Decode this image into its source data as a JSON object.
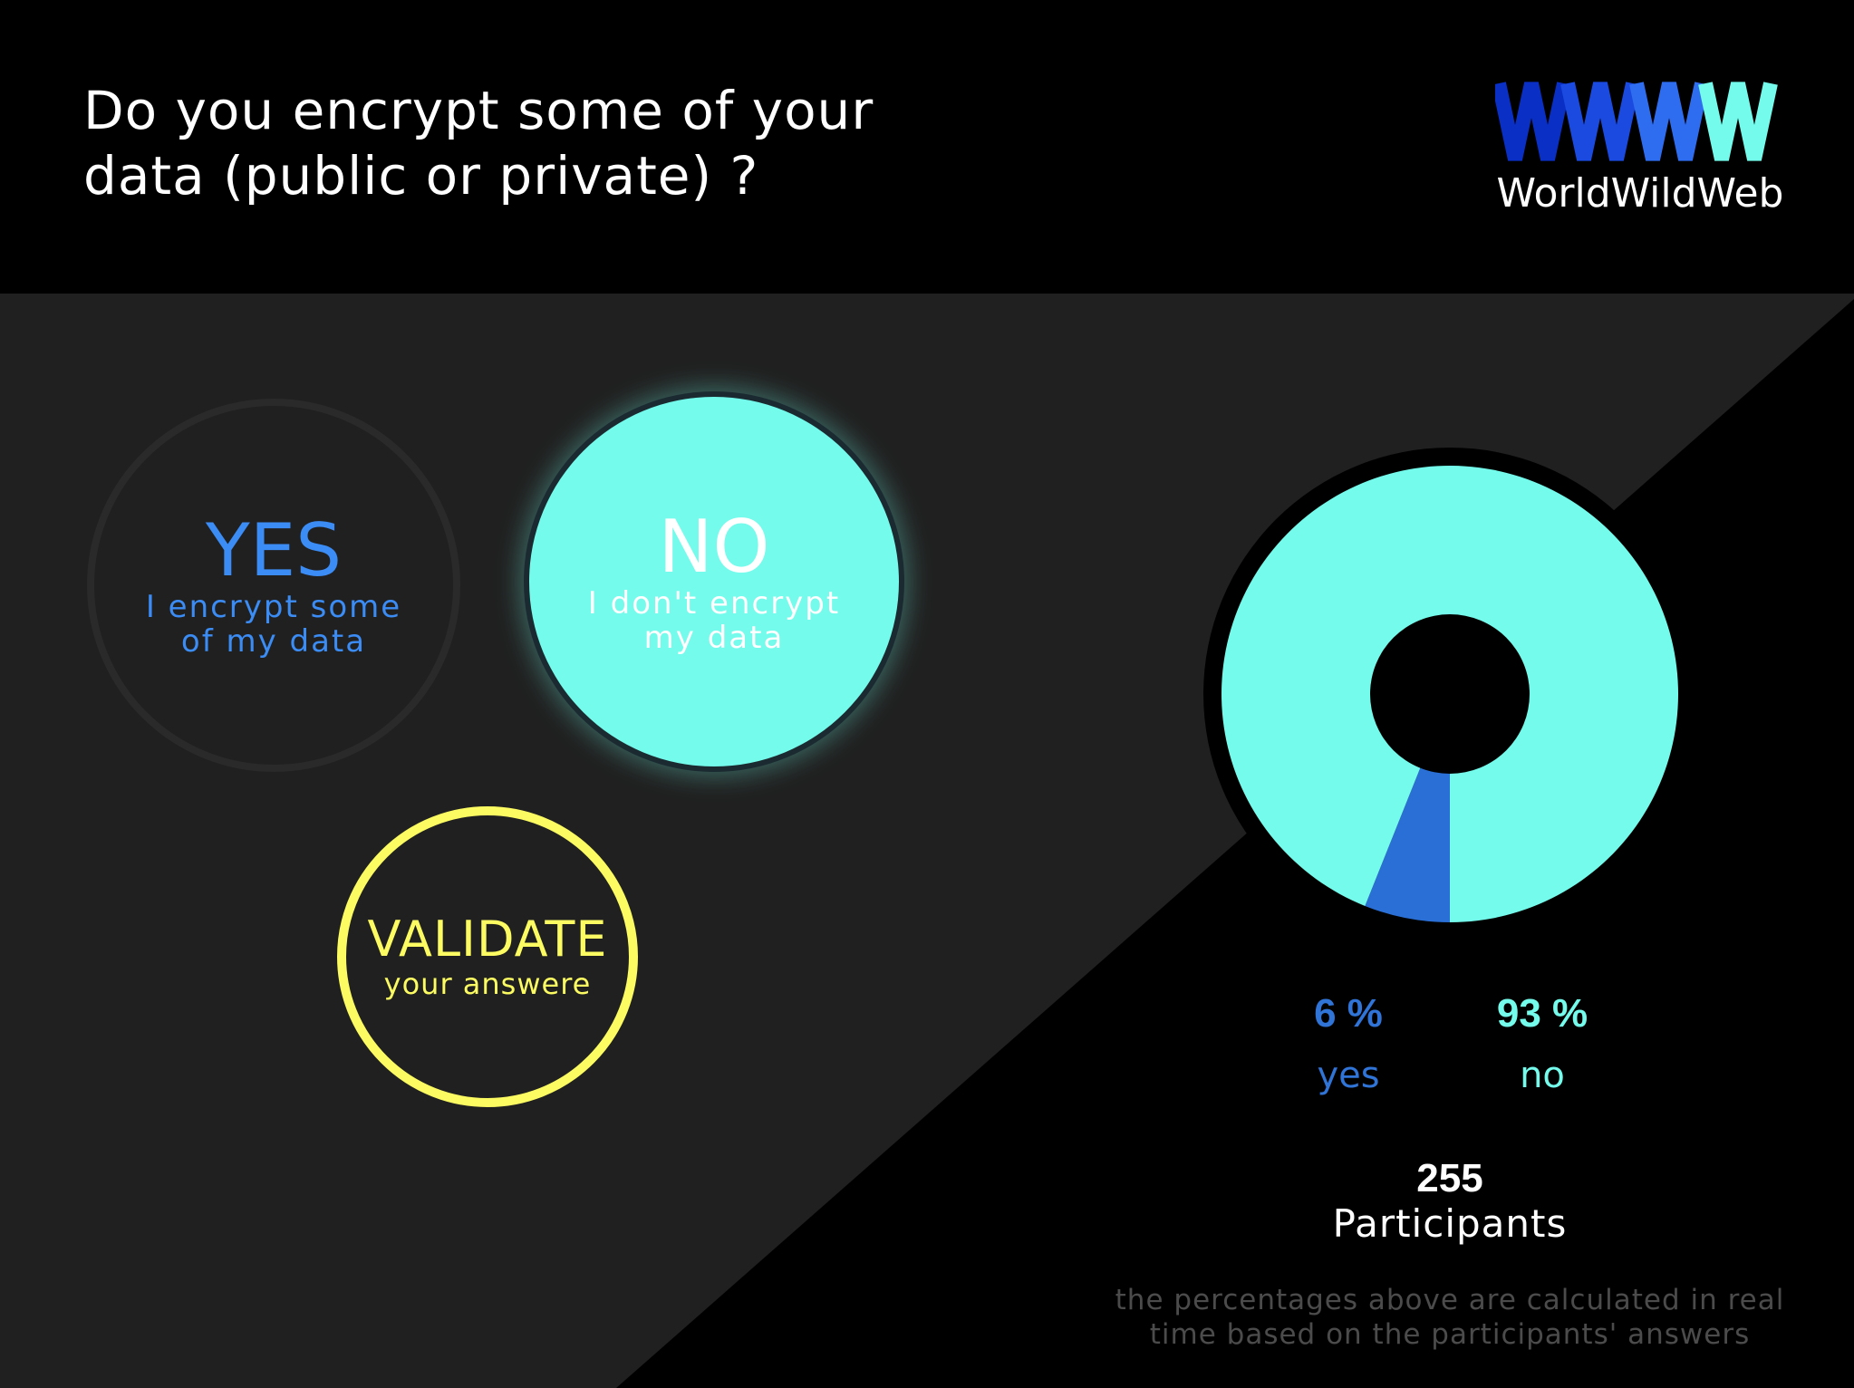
{
  "question": {
    "line1": "Do you encrypt some of your",
    "line2": "data (public or private) ?"
  },
  "brand": {
    "name": "WorldWildWeb",
    "colors": [
      "#0a2fc4",
      "#1a4ae0",
      "#2f6df0",
      "#74fbeb"
    ]
  },
  "options": {
    "yes": {
      "title": "YES",
      "sub1": "I encrypt some",
      "sub2": "of my data"
    },
    "no": {
      "title": "NO",
      "sub1": "I don't encrypt",
      "sub2": "my data"
    }
  },
  "validate": {
    "title": "VALIDATE",
    "sub": "your answere"
  },
  "results": {
    "yes_pct": "6 %",
    "no_pct": "93 %",
    "yes_label": "yes",
    "no_label": "no",
    "participants": "255",
    "participants_label": "Participants",
    "note1": "the percentages above are calculated in real",
    "note2": "time based on the participants' answers"
  },
  "colors": {
    "yes": "#2f74d6",
    "no": "#74fbeb",
    "validate": "#fcfc62",
    "panel": "#202020"
  },
  "chart_data": {
    "type": "pie",
    "categories": [
      "yes",
      "no"
    ],
    "values": [
      6,
      93
    ],
    "colors": [
      "#2a6fd6",
      "#74fbeb"
    ]
  }
}
